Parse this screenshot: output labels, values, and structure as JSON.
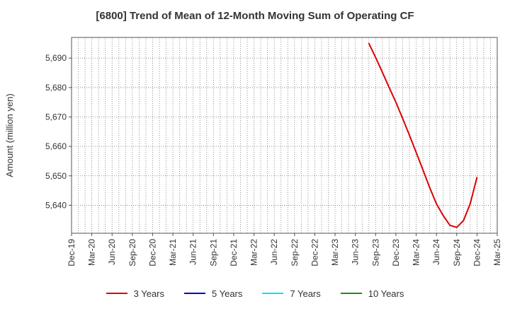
{
  "chart_data": {
    "type": "line",
    "title": "[6800]  Trend of Mean of 12-Month Moving Sum of Operating CF",
    "ylabel": "Amount (million yen)",
    "xlabel": "",
    "x_tick_labels": [
      "Dec-19",
      "Mar-20",
      "Jun-20",
      "Sep-20",
      "Dec-20",
      "Mar-21",
      "Jun-21",
      "Sep-21",
      "Dec-21",
      "Mar-22",
      "Jun-22",
      "Sep-22",
      "Dec-22",
      "Mar-23",
      "Jun-23",
      "Sep-23",
      "Dec-23",
      "Mar-24",
      "Jun-24",
      "Sep-24",
      "Dec-24",
      "Mar-25"
    ],
    "y_ticks": [
      5640,
      5650,
      5660,
      5670,
      5680,
      5690
    ],
    "y_tick_labels": [
      "5,640",
      "5,650",
      "5,660",
      "5,670",
      "5,680",
      "5,690"
    ],
    "ylim": [
      5630.5,
      5697
    ],
    "x_range": [
      "2019-12",
      "2025-03"
    ],
    "grid": true,
    "legend_position": "bottom",
    "series": [
      {
        "name": "3 Years",
        "color": "#dd0000",
        "points": [
          {
            "x": "2023-08",
            "y": 5695.0
          },
          {
            "x": "2023-09",
            "y": 5690.2
          },
          {
            "x": "2023-10",
            "y": 5685.2
          },
          {
            "x": "2023-11",
            "y": 5680.0
          },
          {
            "x": "2023-12",
            "y": 5675.0
          },
          {
            "x": "2024-01",
            "y": 5669.5
          },
          {
            "x": "2024-02",
            "y": 5663.8
          },
          {
            "x": "2024-03",
            "y": 5658.0
          },
          {
            "x": "2024-04",
            "y": 5652.0
          },
          {
            "x": "2024-05",
            "y": 5646.0
          },
          {
            "x": "2024-06",
            "y": 5640.5
          },
          {
            "x": "2024-07",
            "y": 5636.5
          },
          {
            "x": "2024-08",
            "y": 5633.2
          },
          {
            "x": "2024-09",
            "y": 5632.5
          },
          {
            "x": "2024-10",
            "y": 5634.8
          },
          {
            "x": "2024-11",
            "y": 5640.5
          },
          {
            "x": "2024-12",
            "y": 5649.5
          }
        ]
      },
      {
        "name": "5 Years",
        "color": "#0000cc",
        "points": []
      },
      {
        "name": "7 Years",
        "color": "#00e5ee",
        "points": []
      },
      {
        "name": "10 Years",
        "color": "#228b22",
        "points": []
      }
    ]
  }
}
